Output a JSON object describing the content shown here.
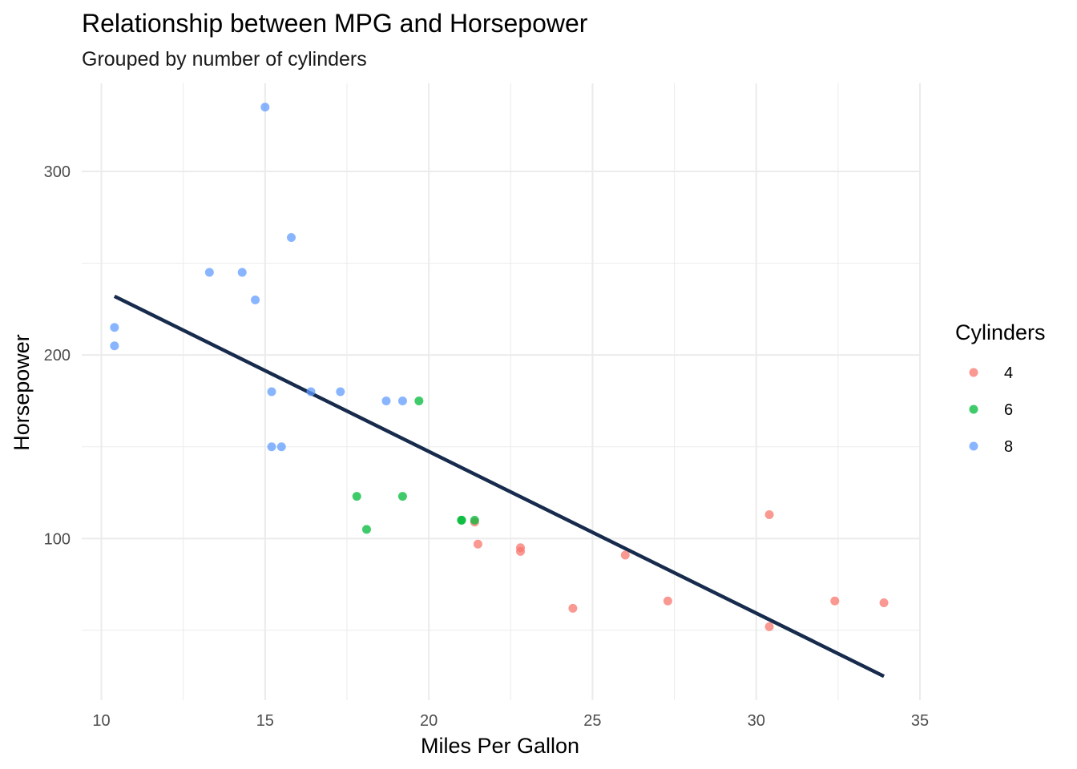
{
  "chart_data": {
    "type": "scatter",
    "title": "Relationship between MPG and Horsepower",
    "subtitle": "Grouped by number of cylinders",
    "xlabel": "Miles Per Gallon",
    "ylabel": "Horsepower",
    "xlim": [
      9.4,
      35.0
    ],
    "ylim": [
      12,
      348
    ],
    "x_ticks": [
      10,
      15,
      20,
      25,
      30,
      35
    ],
    "y_ticks": [
      100,
      200,
      300
    ],
    "grid": true,
    "legend": {
      "title": "Cylinders",
      "placement": "right",
      "entries": [
        {
          "label": "4",
          "color": "#F8766D"
        },
        {
          "label": "6",
          "color": "#00BA38"
        },
        {
          "label": "8",
          "color": "#619CFF"
        }
      ]
    },
    "series": [
      {
        "name": "4",
        "color": "#F8766D",
        "points": [
          {
            "x": 22.8,
            "y": 93
          },
          {
            "x": 24.4,
            "y": 62
          },
          {
            "x": 22.8,
            "y": 95
          },
          {
            "x": 32.4,
            "y": 66
          },
          {
            "x": 30.4,
            "y": 52
          },
          {
            "x": 33.9,
            "y": 65
          },
          {
            "x": 21.5,
            "y": 97
          },
          {
            "x": 27.3,
            "y": 66
          },
          {
            "x": 26.0,
            "y": 91
          },
          {
            "x": 30.4,
            "y": 113
          },
          {
            "x": 21.4,
            "y": 109
          }
        ]
      },
      {
        "name": "6",
        "color": "#00BA38",
        "points": [
          {
            "x": 21.0,
            "y": 110
          },
          {
            "x": 21.0,
            "y": 110
          },
          {
            "x": 21.4,
            "y": 110
          },
          {
            "x": 18.1,
            "y": 105
          },
          {
            "x": 19.2,
            "y": 123
          },
          {
            "x": 17.8,
            "y": 123
          },
          {
            "x": 19.7,
            "y": 175
          }
        ]
      },
      {
        "name": "8",
        "color": "#619CFF",
        "points": [
          {
            "x": 18.7,
            "y": 175
          },
          {
            "x": 14.3,
            "y": 245
          },
          {
            "x": 16.4,
            "y": 180
          },
          {
            "x": 17.3,
            "y": 180
          },
          {
            "x": 15.2,
            "y": 180
          },
          {
            "x": 10.4,
            "y": 205
          },
          {
            "x": 10.4,
            "y": 215
          },
          {
            "x": 14.7,
            "y": 230
          },
          {
            "x": 15.5,
            "y": 150
          },
          {
            "x": 15.2,
            "y": 150
          },
          {
            "x": 13.3,
            "y": 245
          },
          {
            "x": 19.2,
            "y": 175
          },
          {
            "x": 15.8,
            "y": 264
          },
          {
            "x": 15.0,
            "y": 335
          }
        ]
      }
    ],
    "trend_line": {
      "color": "#172B4D",
      "start": {
        "x": 10.4,
        "y": 232
      },
      "end": {
        "x": 33.9,
        "y": 25
      }
    }
  }
}
